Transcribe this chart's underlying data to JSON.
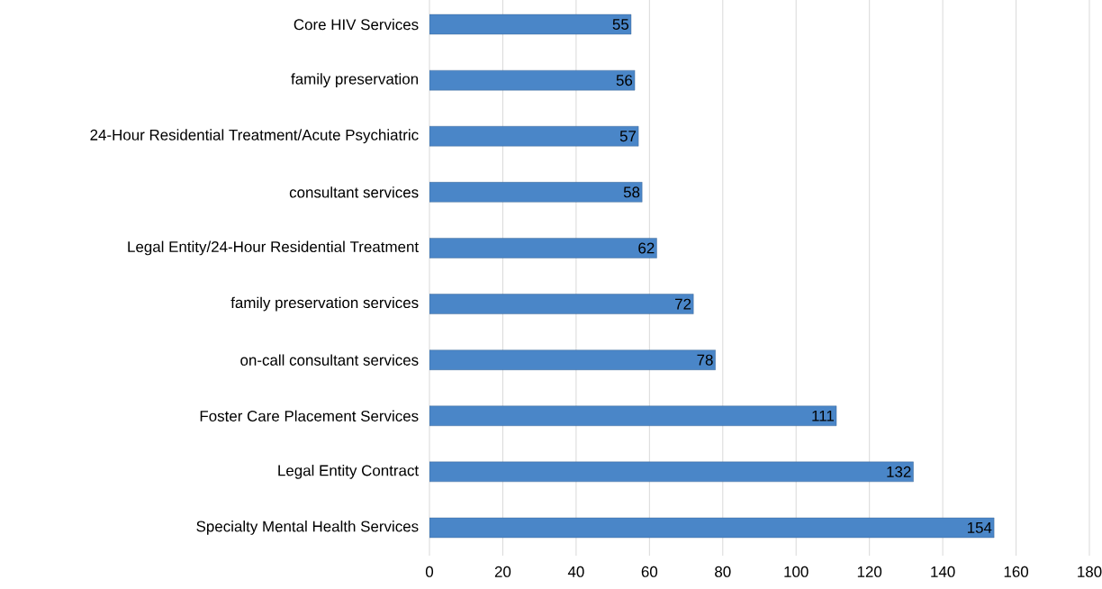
{
  "chart_data": {
    "type": "bar",
    "orientation": "horizontal",
    "categories": [
      "Core HIV Services",
      "family preservation",
      "24-Hour Residential Treatment/Acute Psychiatric",
      "consultant services",
      "Legal Entity/24-Hour Residential Treatment",
      "family preservation services",
      "on-call consultant services",
      "Foster Care Placement Services",
      "Legal Entity Contract",
      "Specialty Mental Health Services"
    ],
    "values": [
      55,
      56,
      57,
      58,
      62,
      72,
      78,
      111,
      132,
      154
    ],
    "color": "#4a86c8",
    "xlim": [
      0,
      180
    ],
    "xticks": [
      0,
      20,
      40,
      60,
      80,
      100,
      120,
      140,
      160,
      180
    ],
    "grid": "x",
    "data_labels": true
  }
}
